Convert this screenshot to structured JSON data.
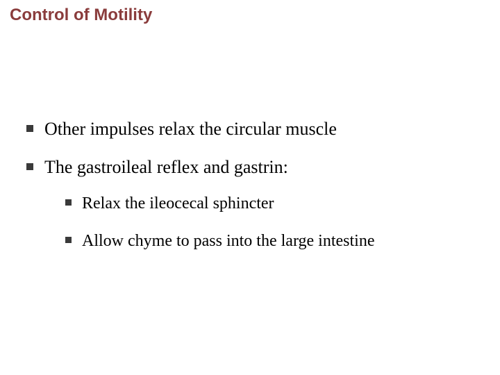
{
  "slide": {
    "title": "Control of Motility",
    "title_color": "#8a3c3c",
    "title_fontsize": 24,
    "title_font": "Arial",
    "body_font": "Times New Roman",
    "body_color": "#000000",
    "background_color": "#ffffff",
    "bullet_color": "#3a3a3a",
    "bullets": [
      {
        "text": "Other impulses relax the circular muscle",
        "fontsize": 26
      },
      {
        "text": "The gastroileal reflex and gastrin:",
        "fontsize": 26,
        "children": [
          {
            "text": "Relax the ileocecal sphincter",
            "fontsize": 24
          },
          {
            "text": "Allow chyme to pass into the large intestine",
            "fontsize": 24
          }
        ]
      }
    ]
  }
}
